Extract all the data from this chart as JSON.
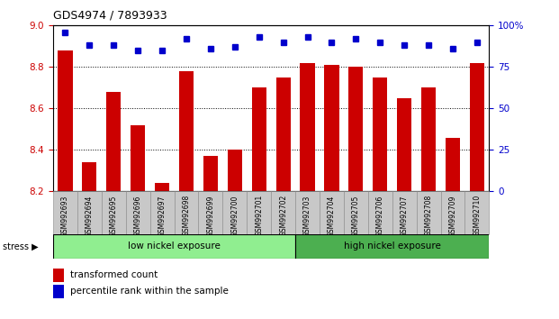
{
  "title": "GDS4974 / 7893933",
  "samples": [
    "GSM992693",
    "GSM992694",
    "GSM992695",
    "GSM992696",
    "GSM992697",
    "GSM992698",
    "GSM992699",
    "GSM992700",
    "GSM992701",
    "GSM992702",
    "GSM992703",
    "GSM992704",
    "GSM992705",
    "GSM992706",
    "GSM992707",
    "GSM992708",
    "GSM992709",
    "GSM992710"
  ],
  "bar_values": [
    8.88,
    8.34,
    8.68,
    8.52,
    8.24,
    8.78,
    8.37,
    8.4,
    8.7,
    8.75,
    8.82,
    8.81,
    8.8,
    8.75,
    8.65,
    8.7,
    8.46,
    8.82
  ],
  "dot_values_pct": [
    96,
    88,
    88,
    85,
    85,
    92,
    86,
    87,
    93,
    90,
    93,
    90,
    92,
    90,
    88,
    88,
    86,
    90
  ],
  "bar_color": "#cc0000",
  "dot_color": "#0000cc",
  "ylim_left": [
    8.2,
    9.0
  ],
  "ylim_right": [
    0,
    100
  ],
  "yticks_left": [
    8.2,
    8.4,
    8.6,
    8.8,
    9.0
  ],
  "yticks_right": [
    0,
    25,
    50,
    75,
    100
  ],
  "grid_values": [
    8.4,
    8.6,
    8.8
  ],
  "group1_label": "low nickel exposure",
  "group2_label": "high nickel exposure",
  "group1_count": 10,
  "stress_label": "stress",
  "legend_bar": "transformed count",
  "legend_dot": "percentile rank within the sample",
  "group1_color": "#90ee90",
  "group2_color": "#4caf50",
  "xtick_bg_color": "#c8c8c8",
  "bg_color": "#ffffff"
}
